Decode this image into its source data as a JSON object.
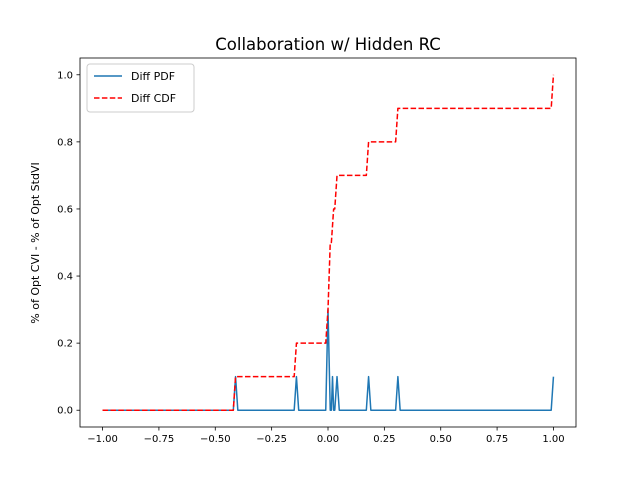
{
  "chart_data": {
    "type": "line",
    "title": "Collaboration w/ Hidden RC",
    "xlabel": "",
    "ylabel": "% of Opt CVI - % of Opt StdVI",
    "xlim": [
      -1.1,
      1.1
    ],
    "ylim": [
      -0.05,
      1.05
    ],
    "x_ticks": [
      -1.0,
      -0.75,
      -0.5,
      -0.25,
      0.0,
      0.25,
      0.5,
      0.75,
      1.0
    ],
    "x_tick_labels": [
      "−1.00",
      "−0.75",
      "−0.50",
      "−0.25",
      "0.00",
      "0.25",
      "0.50",
      "0.75",
      "1.00"
    ],
    "y_ticks": [
      0.0,
      0.2,
      0.4,
      0.6,
      0.8,
      1.0
    ],
    "y_tick_labels": [
      "0.0",
      "0.2",
      "0.4",
      "0.6",
      "0.8",
      "1.0"
    ],
    "grid": false,
    "legend_position": "top-left",
    "series": [
      {
        "name": "Diff PDF",
        "color": "#1f77b4",
        "style": "solid",
        "x": [
          -1.0,
          -0.42,
          -0.41,
          -0.4,
          -0.15,
          -0.14,
          -0.13,
          -0.01,
          0.0,
          0.01,
          0.015,
          0.02,
          0.025,
          0.03,
          0.04,
          0.05,
          0.17,
          0.18,
          0.19,
          0.3,
          0.31,
          0.32,
          0.99,
          1.0
        ],
        "y": [
          0.0,
          0.0,
          0.1,
          0.0,
          0.0,
          0.1,
          0.0,
          0.0,
          0.3,
          0.0,
          0.0,
          0.1,
          0.0,
          0.0,
          0.1,
          0.0,
          0.0,
          0.1,
          0.0,
          0.0,
          0.1,
          0.0,
          0.0,
          0.1
        ]
      },
      {
        "name": "Diff CDF",
        "color": "#ff0000",
        "style": "dashed",
        "x": [
          -1.0,
          -0.42,
          -0.41,
          -0.15,
          -0.14,
          -0.01,
          0.0,
          0.01,
          0.015,
          0.02,
          0.025,
          0.03,
          0.04,
          0.17,
          0.18,
          0.3,
          0.31,
          0.99,
          1.0
        ],
        "y": [
          0.0,
          0.0,
          0.1,
          0.1,
          0.2,
          0.2,
          0.3,
          0.5,
          0.5,
          0.55,
          0.6,
          0.6,
          0.7,
          0.7,
          0.8,
          0.8,
          0.9,
          0.9,
          1.0
        ]
      }
    ]
  }
}
